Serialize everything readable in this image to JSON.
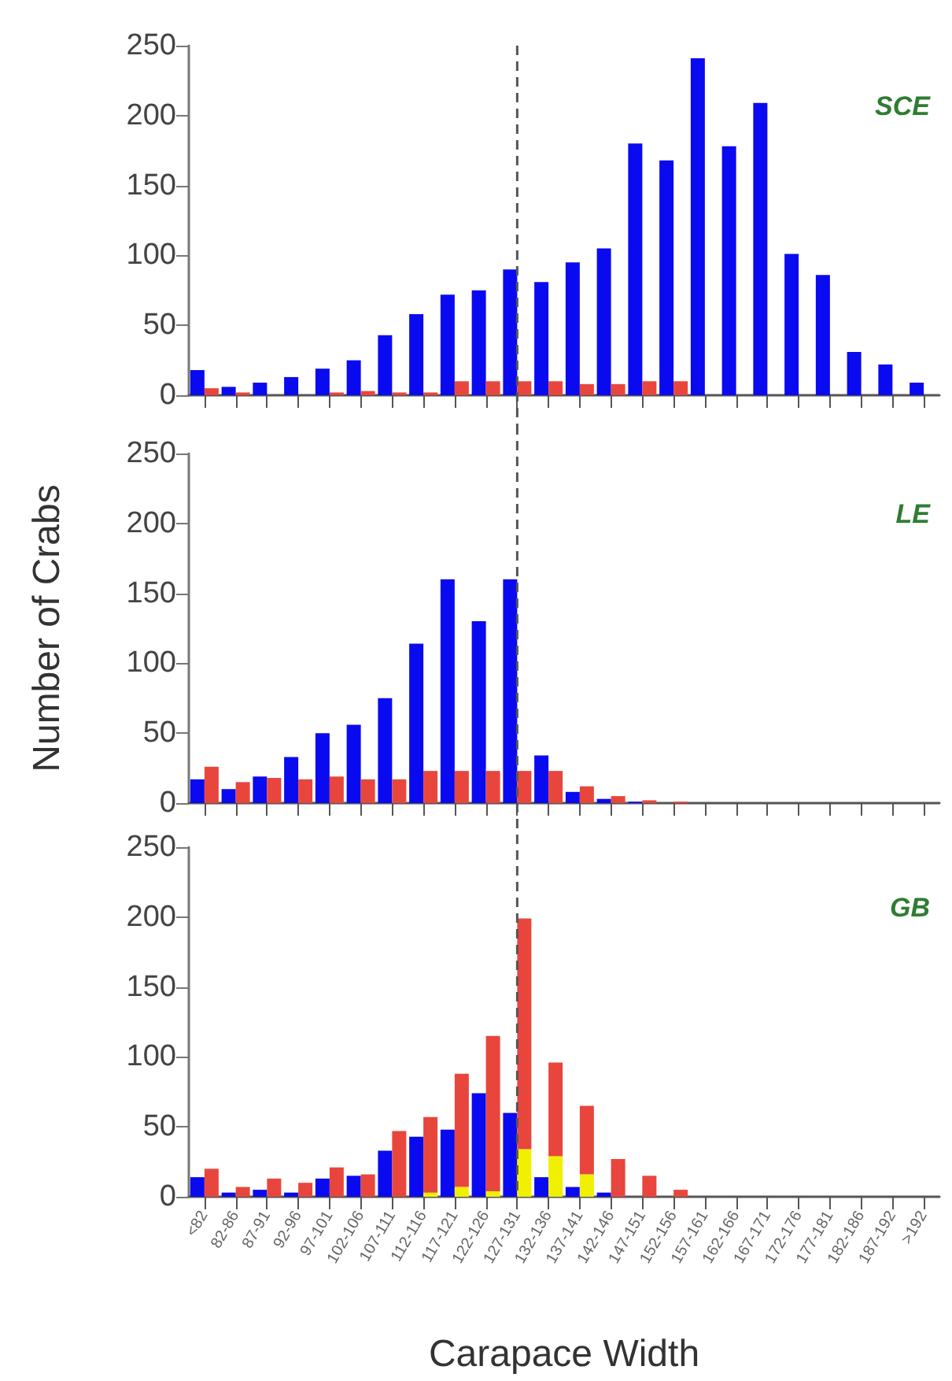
{
  "chart_data": [
    {
      "type": "bar",
      "categories": [
        "<82",
        "82-86",
        "87-91",
        "92-96",
        "97-101",
        "102-106",
        "107-111",
        "112-116",
        "117-121",
        "122-126",
        "127-131",
        "132-136",
        "137-141",
        "142-146",
        "147-151",
        "152-156",
        "157-161",
        "162-166",
        "167-171",
        "172-176",
        "177-181",
        "182-186",
        "187-192",
        ">192"
      ],
      "series": [
        {
          "color": "#0a0af0",
          "values": [
            18,
            6,
            9,
            13,
            19,
            25,
            43,
            58,
            72,
            75,
            90,
            81,
            95,
            105,
            180,
            168,
            241,
            178,
            209,
            101,
            86,
            31,
            22,
            9
          ]
        },
        {
          "color": "#e8463c",
          "values": [
            5,
            2,
            0,
            0,
            2,
            3,
            2,
            2,
            10,
            10,
            10,
            10,
            8,
            8,
            10,
            10,
            0,
            0,
            0,
            0,
            0,
            0,
            0,
            0
          ]
        }
      ],
      "ylim": [
        0,
        250
      ],
      "yticks": [
        0,
        50,
        100,
        150,
        200,
        250
      ],
      "grid": false,
      "tick_labels": "y",
      "annotations": [
        "SCE"
      ],
      "ref_lines": [
        {
          "axis": "x",
          "value": "127-131",
          "line_style": "dashed",
          "color": "#555555"
        }
      ]
    },
    {
      "type": "bar",
      "categories": [
        "<82",
        "82-86",
        "87-91",
        "92-96",
        "97-101",
        "102-106",
        "107-111",
        "112-116",
        "117-121",
        "122-126",
        "127-131",
        "132-136",
        "137-141",
        "142-146",
        "147-151",
        "152-156",
        "157-161",
        "162-166",
        "167-171",
        "172-176",
        "177-181",
        "182-186",
        "187-192",
        ">192"
      ],
      "ylabel": "Number of Crabs",
      "series": [
        {
          "color": "#0a0af0",
          "values": [
            17,
            10,
            19,
            33,
            50,
            56,
            75,
            114,
            160,
            130,
            160,
            34,
            8,
            3,
            1,
            0,
            0,
            0,
            0,
            0,
            0,
            0,
            0,
            0
          ]
        },
        {
          "color": "#e8463c",
          "values": [
            26,
            15,
            18,
            17,
            19,
            17,
            17,
            23,
            23,
            23,
            23,
            23,
            12,
            5,
            2,
            1,
            0,
            0,
            0,
            0,
            0,
            0,
            0,
            0
          ]
        }
      ],
      "ylim": [
        0,
        250
      ],
      "yticks": [
        0,
        50,
        100,
        150,
        200,
        250
      ],
      "grid": false,
      "tick_labels": "y",
      "annotations": [
        "LE"
      ],
      "ref_lines": [
        {
          "axis": "x",
          "value": "127-131",
          "line_style": "dashed",
          "color": "#555555"
        }
      ]
    },
    {
      "type": "bar",
      "categories": [
        "<82",
        "82-86",
        "87-91",
        "92-96",
        "97-101",
        "102-106",
        "107-111",
        "112-116",
        "117-121",
        "122-126",
        "127-131",
        "132-136",
        "137-141",
        "142-146",
        "147-151",
        "152-156",
        "157-161",
        "162-166",
        "167-171",
        "172-176",
        "177-181",
        "182-186",
        "187-192",
        ">192"
      ],
      "xlabel": "Carapace Width",
      "series": [
        {
          "color": "#0a0af0",
          "values": [
            14,
            3,
            5,
            3,
            13,
            15,
            33,
            43,
            48,
            74,
            60,
            14,
            7,
            3,
            0,
            0,
            0,
            0,
            0,
            0,
            0,
            0,
            0,
            0
          ]
        },
        {
          "color": "#f0f000",
          "values": [
            0,
            0,
            0,
            0,
            0,
            0,
            0,
            3,
            7,
            4,
            34,
            29,
            16,
            0,
            0,
            0,
            0,
            0,
            0,
            0,
            0,
            0,
            0,
            0
          ]
        },
        {
          "color": "#e8463c",
          "base": [
            0,
            0,
            0,
            0,
            0,
            0,
            0,
            3,
            7,
            4,
            34,
            29,
            16,
            0,
            0,
            0,
            null,
            null,
            null,
            null,
            null,
            null,
            null,
            null
          ],
          "values": [
            20,
            7,
            13,
            10,
            21,
            16,
            47,
            54,
            81,
            111,
            165,
            67,
            49,
            27,
            15,
            5,
            0,
            0,
            0,
            0,
            0,
            0,
            0,
            0
          ]
        }
      ],
      "ylim": [
        0,
        250
      ],
      "yticks": [
        0,
        50,
        100,
        150,
        200,
        250
      ],
      "grid": false,
      "annotations": [
        "GB"
      ],
      "ref_lines": [
        {
          "axis": "x",
          "value": "127-131",
          "line_style": "dashed",
          "color": "#555555"
        }
      ]
    }
  ]
}
